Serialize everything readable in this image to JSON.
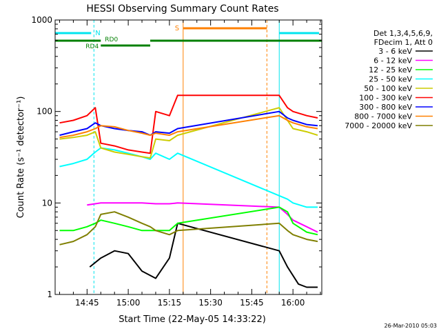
{
  "chart_data": {
    "type": "line",
    "title": "HESSI Observing Summary Count Rates",
    "xlabel": "Start Time (22-May-05 14:33:22)",
    "ylabel": "Count Rate (s⁻¹ detector⁻¹)",
    "yscale": "log",
    "ylim": [
      1,
      1000
    ],
    "xlim": [
      "14:33:22",
      "16:10:30"
    ],
    "ytick_labels": [
      "1",
      "10",
      "100",
      "1000"
    ],
    "xtick_labels": [
      "14:45",
      "15:00",
      "15:15",
      "15:30",
      "15:45",
      "16:00"
    ],
    "legend_position": "right",
    "legend_header": [
      "Det 1,3,4,5,6,9,",
      "FDecim 1, Att 0"
    ],
    "footer": "26-Mar-2010 05:03",
    "state_labels": {
      "night": "N",
      "saa": "S",
      "rd4": "RD4",
      "rd0": "RD0"
    },
    "state_colors": {
      "night": "#00e5ee",
      "saa": "#ff8000",
      "decim": "#007f00"
    },
    "series": [
      {
        "name": "3 - 6 keV",
        "color": "#000000",
        "points": [
          [
            "14:46",
            2.0
          ],
          [
            "14:50",
            2.5
          ],
          [
            "14:55",
            3.0
          ],
          [
            "15:00",
            2.8
          ],
          [
            "15:05",
            1.8
          ],
          [
            "15:10",
            1.5
          ],
          [
            "15:15",
            2.5
          ],
          [
            "15:18",
            6.0
          ],
          [
            "15:55",
            3.0
          ],
          [
            "15:58",
            2.0
          ],
          [
            "16:02",
            1.3
          ],
          [
            "16:05",
            1.2
          ],
          [
            "16:09",
            1.2
          ]
        ]
      },
      {
        "name": "6 - 12 keV",
        "color": "#ff00ff",
        "points": [
          [
            "14:45",
            9.5
          ],
          [
            "14:50",
            10.0
          ],
          [
            "14:55",
            10.0
          ],
          [
            "15:00",
            10.0
          ],
          [
            "15:05",
            10.0
          ],
          [
            "15:10",
            9.8
          ],
          [
            "15:15",
            9.8
          ],
          [
            "15:18",
            10.0
          ],
          [
            "15:55",
            9.0
          ],
          [
            "15:58",
            7.5
          ],
          [
            "16:00",
            6.5
          ],
          [
            "16:05",
            5.5
          ],
          [
            "16:09",
            4.8
          ]
        ]
      },
      {
        "name": "12 - 25 keV",
        "color": "#00ff00",
        "points": [
          [
            "14:35",
            5.0
          ],
          [
            "14:40",
            5.0
          ],
          [
            "14:45",
            5.5
          ],
          [
            "14:48",
            6.0
          ],
          [
            "14:50",
            6.5
          ],
          [
            "14:55",
            6.0
          ],
          [
            "15:00",
            5.5
          ],
          [
            "15:05",
            5.0
          ],
          [
            "15:10",
            5.0
          ],
          [
            "15:15",
            5.0
          ],
          [
            "15:18",
            6.0
          ],
          [
            "15:55",
            9.0
          ],
          [
            "15:58",
            8.0
          ],
          [
            "16:00",
            6.0
          ],
          [
            "16:05",
            4.8
          ],
          [
            "16:09",
            4.5
          ]
        ]
      },
      {
        "name": "25 - 50 keV",
        "color": "#00ffff",
        "points": [
          [
            "14:35",
            25
          ],
          [
            "14:40",
            27
          ],
          [
            "14:45",
            30
          ],
          [
            "14:48",
            36
          ],
          [
            "14:50",
            40
          ],
          [
            "14:55",
            38
          ],
          [
            "15:00",
            35
          ],
          [
            "15:05",
            32
          ],
          [
            "15:08",
            30
          ],
          [
            "15:10",
            35
          ],
          [
            "15:15",
            30
          ],
          [
            "15:18",
            35
          ],
          [
            "15:55",
            12
          ],
          [
            "15:58",
            11
          ],
          [
            "16:00",
            10
          ],
          [
            "16:05",
            9
          ],
          [
            "16:09",
            9
          ]
        ]
      },
      {
        "name": "50 - 100 keV",
        "color": "#cccc00",
        "points": [
          [
            "14:35",
            50
          ],
          [
            "14:40",
            52
          ],
          [
            "14:45",
            55
          ],
          [
            "14:48",
            60
          ],
          [
            "14:50",
            40
          ],
          [
            "14:55",
            36
          ],
          [
            "15:00",
            34
          ],
          [
            "15:05",
            32
          ],
          [
            "15:08",
            31
          ],
          [
            "15:10",
            50
          ],
          [
            "15:15",
            48
          ],
          [
            "15:18",
            55
          ],
          [
            "15:55",
            110
          ],
          [
            "15:58",
            80
          ],
          [
            "16:00",
            65
          ],
          [
            "16:05",
            60
          ],
          [
            "16:09",
            55
          ]
        ]
      },
      {
        "name": "100 - 300 keV",
        "color": "#ff0000",
        "points": [
          [
            "14:35",
            75
          ],
          [
            "14:40",
            80
          ],
          [
            "14:45",
            90
          ],
          [
            "14:48",
            110
          ],
          [
            "14:50",
            45
          ],
          [
            "14:55",
            42
          ],
          [
            "15:00",
            38
          ],
          [
            "15:05",
            36
          ],
          [
            "15:08",
            35
          ],
          [
            "15:10",
            100
          ],
          [
            "15:15",
            90
          ],
          [
            "15:18",
            150
          ],
          [
            "15:55",
            150
          ],
          [
            "15:58",
            110
          ],
          [
            "16:00",
            100
          ],
          [
            "16:05",
            90
          ],
          [
            "16:09",
            85
          ]
        ]
      },
      {
        "name": "300 - 800 keV",
        "color": "#0000ff",
        "points": [
          [
            "14:35",
            55
          ],
          [
            "14:40",
            60
          ],
          [
            "14:45",
            65
          ],
          [
            "14:48",
            75
          ],
          [
            "14:50",
            70
          ],
          [
            "14:55",
            65
          ],
          [
            "15:00",
            62
          ],
          [
            "15:05",
            60
          ],
          [
            "15:08",
            55
          ],
          [
            "15:10",
            60
          ],
          [
            "15:15",
            58
          ],
          [
            "15:18",
            65
          ],
          [
            "15:55",
            100
          ],
          [
            "15:58",
            85
          ],
          [
            "16:00",
            80
          ],
          [
            "16:05",
            72
          ],
          [
            "16:09",
            70
          ]
        ]
      },
      {
        "name": "800 - 7000 keV",
        "color": "#ff8000",
        "points": [
          [
            "14:35",
            52
          ],
          [
            "14:40",
            55
          ],
          [
            "14:45",
            60
          ],
          [
            "14:48",
            65
          ],
          [
            "14:50",
            70
          ],
          [
            "14:55",
            68
          ],
          [
            "15:00",
            62
          ],
          [
            "15:05",
            58
          ],
          [
            "15:08",
            55
          ],
          [
            "15:10",
            58
          ],
          [
            "15:15",
            55
          ],
          [
            "15:18",
            60
          ],
          [
            "15:55",
            90
          ],
          [
            "15:58",
            80
          ],
          [
            "16:00",
            75
          ],
          [
            "16:05",
            68
          ],
          [
            "16:09",
            65
          ]
        ]
      },
      {
        "name": "7000 - 20000 keV",
        "color": "#7f7f00",
        "points": [
          [
            "14:35",
            3.5
          ],
          [
            "14:40",
            3.8
          ],
          [
            "14:45",
            4.5
          ],
          [
            "14:48",
            5.5
          ],
          [
            "14:50",
            7.5
          ],
          [
            "14:55",
            8.0
          ],
          [
            "15:00",
            7.0
          ],
          [
            "15:05",
            6.0
          ],
          [
            "15:08",
            5.5
          ],
          [
            "15:10",
            5.0
          ],
          [
            "15:15",
            4.5
          ],
          [
            "15:18",
            5.0
          ],
          [
            "15:55",
            6.0
          ],
          [
            "15:58",
            5.0
          ],
          [
            "16:00",
            4.5
          ],
          [
            "16:05",
            4.0
          ],
          [
            "16:09",
            3.8
          ]
        ]
      }
    ],
    "states": {
      "night_intervals": [
        [
          "14:33:22",
          "14:47:30"
        ],
        [
          "15:55:00",
          "16:10:30"
        ]
      ],
      "saa_interval": [
        "15:20:00",
        "15:50:30"
      ],
      "rd4_interval": [
        "14:33:22",
        "14:50:00"
      ],
      "rd0_interval": [
        "14:50:00",
        "15:08:00"
      ]
    }
  }
}
